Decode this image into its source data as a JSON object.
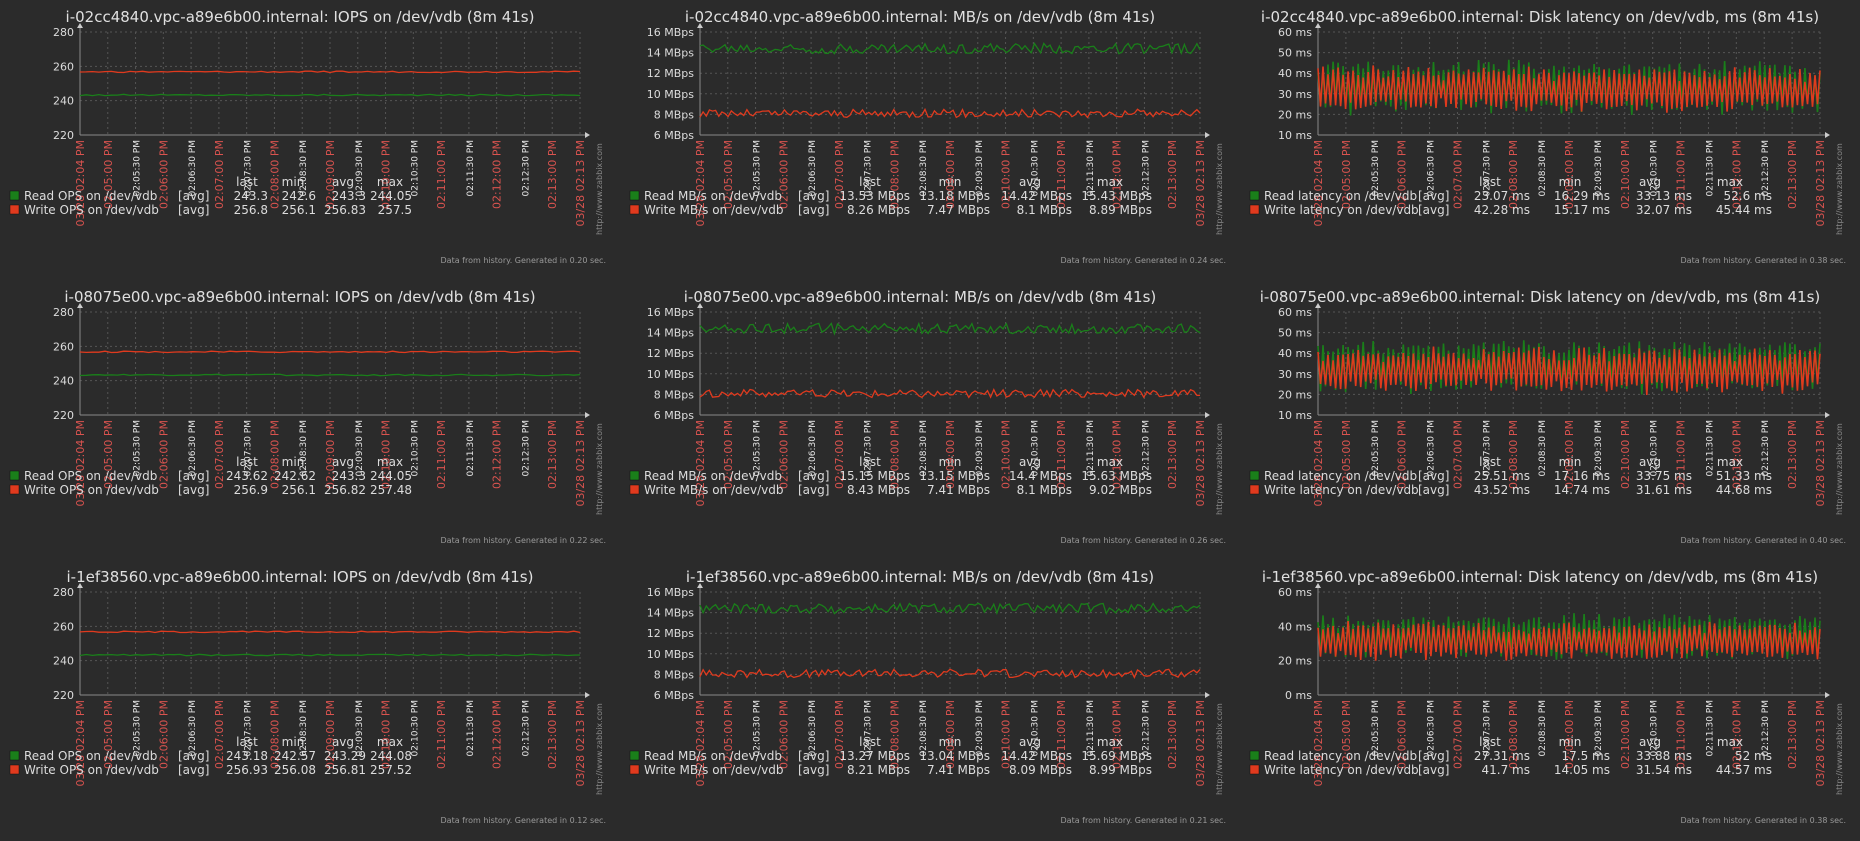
{
  "time_ticks": [
    "03/28 02:04 PM",
    "02:05:00 PM",
    "02:05:30 PM",
    "02:06:00 PM",
    "02:06:30 PM",
    "02:07:00 PM",
    "02:07:30 PM",
    "02:08:00 PM",
    "02:08:30 PM",
    "02:09:00 PM",
    "02:09:30 PM",
    "02:10:00 PM",
    "02:10:30 PM",
    "02:11:00 PM",
    "02:11:30 PM",
    "02:12:00 PM",
    "02:12:30 PM",
    "02:13:00 PM",
    "03/28 02:13 PM"
  ],
  "watermark": "http://www.zabbix.com",
  "legend_headers": [
    "last",
    "min",
    "avg",
    "max"
  ],
  "colors": {
    "bg": "#2b2b2b",
    "read": "#1a7f1a",
    "write": "#e03a1e",
    "grid": "#555555",
    "text": "#dcdcdc",
    "tick_red": "#d9534f",
    "tick_white": "#e6e6e6"
  },
  "chart_data": [
    {
      "type": "line",
      "title": "i-02cc4840.vpc-a89e6b00.internal: IOPS on /dev/vdb (8m 41s)",
      "kind": "iops",
      "ylim": [
        220,
        280
      ],
      "yticks": [
        "220",
        "240",
        "260",
        "280"
      ],
      "series": [
        {
          "name": "Read OPS on /dev/vdb",
          "func": "[avg]",
          "last": "243.3",
          "min": "242.6",
          "avg": "243.3",
          "max": "244.05",
          "center": 243.3,
          "amp": 0.4
        },
        {
          "name": "Write OPS on /dev/vdb",
          "func": "[avg]",
          "last": "256.8",
          "min": "256.1",
          "avg": "256.83",
          "max": "257.5",
          "center": 256.8,
          "amp": 0.4
        }
      ],
      "footer": "Data from history. Generated in 0.20 sec."
    },
    {
      "type": "line",
      "title": "i-02cc4840.vpc-a89e6b00.internal: MB/s on /dev/vdb (8m 41s)",
      "kind": "mbps",
      "ylim": [
        6,
        16
      ],
      "yticks": [
        "6 MBps",
        "8 MBps",
        "10 MBps",
        "12 MBps",
        "14 MBps",
        "16 MBps"
      ],
      "series": [
        {
          "name": "Read MB/s on /dev/vdb",
          "func": "[avg]",
          "last": "13.53 MBps",
          "min": "13.18 MBps",
          "avg": "14.42 MBps",
          "max": "15.43 MBps",
          "center": 14.4,
          "amp": 0.5
        },
        {
          "name": "Write MB/s on /dev/vdb",
          "func": "[avg]",
          "last": "8.26 MBps",
          "min": "7.47 MBps",
          "avg": "8.1 MBps",
          "max": "8.89 MBps",
          "center": 8.1,
          "amp": 0.4
        }
      ],
      "footer": "Data from history. Generated in 0.24 sec."
    },
    {
      "type": "line",
      "title": "i-02cc4840.vpc-a89e6b00.internal: Disk latency on /dev/vdb, ms (8m 41s)",
      "kind": "lat",
      "ylim": [
        10,
        60
      ],
      "yticks": [
        "10 ms",
        "20 ms",
        "30 ms",
        "40 ms",
        "50 ms",
        "60 ms"
      ],
      "series": [
        {
          "name": "Read latency on /dev/vdb",
          "func": "[avg]",
          "last": "23.07 ms",
          "min": "16.29 ms",
          "avg": "33.13 ms",
          "max": "52.6 ms",
          "center": 33.1,
          "amp": 12
        },
        {
          "name": "Write latency on /dev/vdb",
          "func": "[avg]",
          "last": "42.28 ms",
          "min": "15.17 ms",
          "avg": "32.07 ms",
          "max": "45.44 ms",
          "center": 32.1,
          "amp": 10
        }
      ],
      "footer": "Data from history. Generated in 0.38 sec."
    },
    {
      "type": "line",
      "title": "i-08075e00.vpc-a89e6b00.internal: IOPS on /dev/vdb (8m 41s)",
      "kind": "iops",
      "ylim": [
        220,
        280
      ],
      "yticks": [
        "220",
        "240",
        "260",
        "280"
      ],
      "series": [
        {
          "name": "Read OPS on /dev/vdb",
          "func": "[avg]",
          "last": "243.62",
          "min": "242.62",
          "avg": "243.3",
          "max": "244.05",
          "center": 243.3,
          "amp": 0.4
        },
        {
          "name": "Write OPS on /dev/vdb",
          "func": "[avg]",
          "last": "256.9",
          "min": "256.1",
          "avg": "256.82",
          "max": "257.48",
          "center": 256.8,
          "amp": 0.4
        }
      ],
      "footer": "Data from history. Generated in 0.22 sec."
    },
    {
      "type": "line",
      "title": "i-08075e00.vpc-a89e6b00.internal: MB/s on /dev/vdb (8m 41s)",
      "kind": "mbps",
      "ylim": [
        6,
        16
      ],
      "yticks": [
        "6 MBps",
        "8 MBps",
        "10 MBps",
        "12 MBps",
        "14 MBps",
        "16 MBps"
      ],
      "series": [
        {
          "name": "Read MB/s on /dev/vdb",
          "func": "[avg]",
          "last": "15.15 MBps",
          "min": "13.15 MBps",
          "avg": "14.4 MBps",
          "max": "15.63 MBps",
          "center": 14.4,
          "amp": 0.5
        },
        {
          "name": "Write MB/s on /dev/vdb",
          "func": "[avg]",
          "last": "8.43 MBps",
          "min": "7.41 MBps",
          "avg": "8.1 MBps",
          "max": "9.02 MBps",
          "center": 8.1,
          "amp": 0.4
        }
      ],
      "footer": "Data from history. Generated in 0.26 sec."
    },
    {
      "type": "line",
      "title": "i-08075e00.vpc-a89e6b00.internal: Disk latency on /dev/vdb, ms (8m 41s)",
      "kind": "lat",
      "ylim": [
        10,
        60
      ],
      "yticks": [
        "10 ms",
        "20 ms",
        "30 ms",
        "40 ms",
        "50 ms",
        "60 ms"
      ],
      "series": [
        {
          "name": "Read latency on /dev/vdb",
          "func": "[avg]",
          "last": "25.51 ms",
          "min": "17.16 ms",
          "avg": "33.75 ms",
          "max": "51.33 ms",
          "center": 33.7,
          "amp": 12
        },
        {
          "name": "Write latency on /dev/vdb",
          "func": "[avg]",
          "last": "43.52 ms",
          "min": "14.74 ms",
          "avg": "31.61 ms",
          "max": "44.68 ms",
          "center": 31.6,
          "amp": 10
        }
      ],
      "footer": "Data from history. Generated in 0.40 sec."
    },
    {
      "type": "line",
      "title": "i-1ef38560.vpc-a89e6b00.internal: IOPS on /dev/vdb (8m 41s)",
      "kind": "iops",
      "ylim": [
        220,
        280
      ],
      "yticks": [
        "220",
        "240",
        "260",
        "280"
      ],
      "series": [
        {
          "name": "Read OPS on /dev/vdb",
          "func": "[avg]",
          "last": "243.18",
          "min": "242.57",
          "avg": "243.29",
          "max": "244.08",
          "center": 243.3,
          "amp": 0.4
        },
        {
          "name": "Write OPS on /dev/vdb",
          "func": "[avg]",
          "last": "256.93",
          "min": "256.08",
          "avg": "256.81",
          "max": "257.52",
          "center": 256.8,
          "amp": 0.4
        }
      ],
      "footer": "Data from history. Generated in 0.12 sec."
    },
    {
      "type": "line",
      "title": "i-1ef38560.vpc-a89e6b00.internal: MB/s on /dev/vdb (8m 41s)",
      "kind": "mbps",
      "ylim": [
        6,
        16
      ],
      "yticks": [
        "6 MBps",
        "8 MBps",
        "10 MBps",
        "12 MBps",
        "14 MBps",
        "16 MBps"
      ],
      "series": [
        {
          "name": "Read MB/s on /dev/vdb",
          "func": "[avg]",
          "last": "13.27 MBps",
          "min": "13.04 MBps",
          "avg": "14.42 MBps",
          "max": "15.69 MBps",
          "center": 14.4,
          "amp": 0.5
        },
        {
          "name": "Write MB/s on /dev/vdb",
          "func": "[avg]",
          "last": "8.21 MBps",
          "min": "7.41 MBps",
          "avg": "8.09 MBps",
          "max": "8.99 MBps",
          "center": 8.1,
          "amp": 0.4
        }
      ],
      "footer": "Data from history. Generated in 0.21 sec."
    },
    {
      "type": "line",
      "title": "i-1ef38560.vpc-a89e6b00.internal: Disk latency on /dev/vdb, ms (8m 41s)",
      "kind": "lat",
      "ylim": [
        0,
        60
      ],
      "yticks": [
        "0 ms",
        "20 ms",
        "40 ms",
        "60 ms"
      ],
      "series": [
        {
          "name": "Read latency on /dev/vdb",
          "func": "[avg]",
          "last": "27.31 ms",
          "min": "17.5 ms",
          "avg": "33.88 ms",
          "max": "52 ms",
          "center": 33.9,
          "amp": 12
        },
        {
          "name": "Write latency on /dev/vdb",
          "func": "[avg]",
          "last": "41.7 ms",
          "min": "14.05 ms",
          "avg": "31.54 ms",
          "max": "44.57 ms",
          "center": 31.5,
          "amp": 10
        }
      ],
      "footer": "Data from history. Generated in 0.38 sec."
    }
  ]
}
